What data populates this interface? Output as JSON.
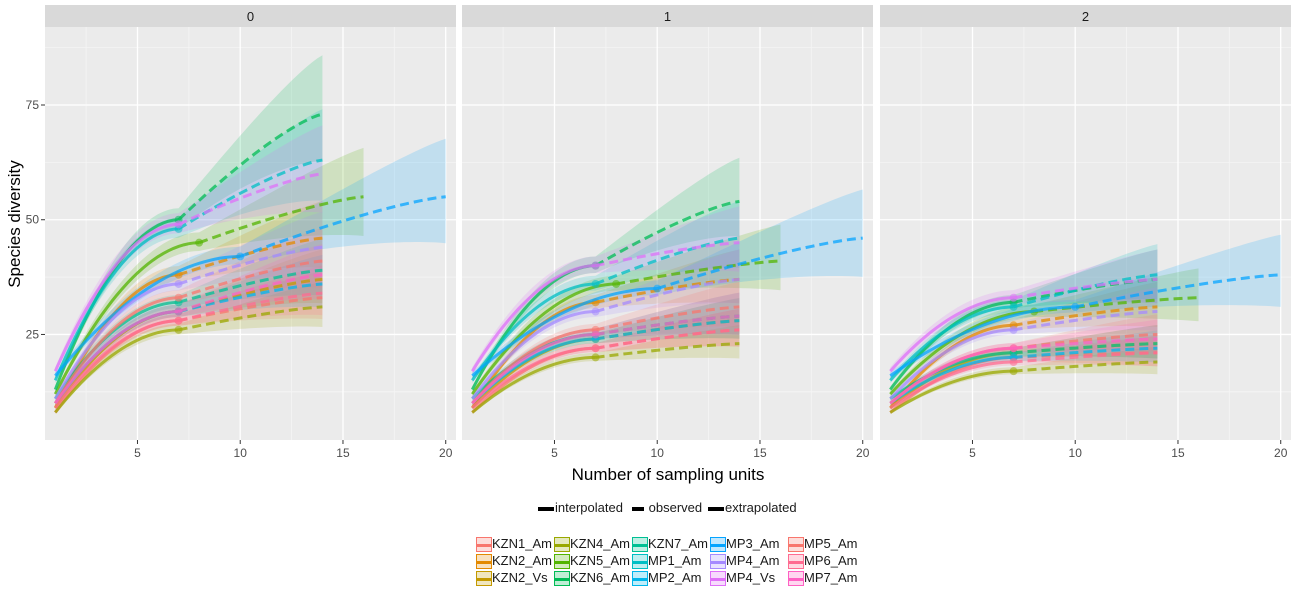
{
  "panels": [
    "0",
    "1",
    "2"
  ],
  "xlabel": "Number of sampling units",
  "ylabel": "Species diversity",
  "x_ticks": [
    5,
    10,
    15,
    20
  ],
  "y_ticks": [
    25,
    50,
    75
  ],
  "xlim": [
    0.5,
    20.5
  ],
  "ylim": [
    2,
    92
  ],
  "method_legend": [
    "interpolated",
    "observed",
    "extrapolated"
  ],
  "colors": {
    "KZN1_Am": "#F8766D",
    "KZN2_Am": "#E38900",
    "KZN2_Vs": "#C49A00",
    "KZN4_Am": "#99A800",
    "KZN5_Am": "#53B400",
    "KZN6_Am": "#00BC56",
    "KZN7_Am": "#00C094",
    "MP1_Am": "#00BFC4",
    "MP2_Am": "#00B6EB",
    "MP3_Am": "#06A4FF",
    "MP4_Am": "#A58AFF",
    "MP4_Vs": "#DF70F8",
    "MP5_Am": "#F8766D",
    "MP6_Am": "#FF6C91",
    "MP7_Am": "#FF61C3"
  },
  "legend_items": [
    "KZN1_Am",
    "KZN2_Am",
    "KZN2_Vs",
    "KZN4_Am",
    "KZN5_Am",
    "KZN6_Am",
    "KZN7_Am",
    "MP1_Am",
    "MP2_Am",
    "MP3_Am",
    "MP4_Am",
    "MP4_Vs",
    "MP5_Am",
    "MP6_Am",
    "MP7_Am"
  ],
  "chart_data": {
    "type": "line",
    "facets": [
      "0",
      "1",
      "2"
    ],
    "xlabel": "Number of sampling units",
    "ylabel": "Species diversity",
    "xlim": [
      0.5,
      20.5
    ],
    "ylim": [
      2,
      92
    ],
    "series": [
      {
        "name": "KZN1_Am",
        "n_obs": 7,
        "x_end": 14,
        "start": [
          8,
          8,
          8
        ],
        "obs": [
          28,
          22,
          20
        ],
        "end": [
          33,
          26,
          21
        ]
      },
      {
        "name": "KZN2_Am",
        "n_obs": 7,
        "x_end": 14,
        "start": [
          9,
          9,
          9
        ],
        "obs": [
          38,
          32,
          27
        ],
        "end": [
          46,
          37,
          31
        ]
      },
      {
        "name": "KZN2_Vs",
        "n_obs": 7,
        "x_end": 14,
        "start": [
          9,
          9,
          9
        ],
        "obs": [
          30,
          24,
          21
        ],
        "end": [
          37,
          28,
          23
        ]
      },
      {
        "name": "KZN4_Am",
        "n_obs": 7,
        "x_end": 14,
        "start": [
          8,
          8,
          8
        ],
        "obs": [
          26,
          20,
          17
        ],
        "end": [
          31,
          23,
          19
        ]
      },
      {
        "name": "KZN5_Am",
        "n_obs": 8,
        "x_end": 16,
        "start": [
          12,
          12,
          12
        ],
        "obs": [
          45,
          36,
          30
        ],
        "end": [
          55,
          41,
          33
        ]
      },
      {
        "name": "KZN6_Am",
        "n_obs": 7,
        "x_end": 14,
        "start": [
          13,
          13,
          13
        ],
        "obs": [
          50,
          40,
          32
        ],
        "end": [
          73,
          54,
          37
        ]
      },
      {
        "name": "KZN7_Am",
        "n_obs": 7,
        "x_end": 14,
        "start": [
          11,
          11,
          11
        ],
        "obs": [
          32,
          25,
          21
        ],
        "end": [
          39,
          29,
          23
        ]
      },
      {
        "name": "MP1_Am",
        "n_obs": 7,
        "x_end": 14,
        "start": [
          15,
          15,
          15
        ],
        "obs": [
          48,
          36,
          31
        ],
        "end": [
          63,
          46,
          38
        ]
      },
      {
        "name": "MP2_Am",
        "n_obs": 7,
        "x_end": 14,
        "start": [
          10,
          10,
          10
        ],
        "obs": [
          30,
          24,
          20
        ],
        "end": [
          36,
          28,
          22
        ]
      },
      {
        "name": "MP3_Am",
        "n_obs": 10,
        "x_end": 20,
        "start": [
          16,
          16,
          16
        ],
        "obs": [
          42,
          35,
          31
        ],
        "end": [
          55,
          46,
          38
        ]
      },
      {
        "name": "MP4_Am",
        "n_obs": 7,
        "x_end": 14,
        "start": [
          11,
          11,
          11
        ],
        "obs": [
          36,
          30,
          26
        ],
        "end": [
          44,
          37,
          30
        ]
      },
      {
        "name": "MP4_Vs",
        "n_obs": 7,
        "x_end": 14,
        "start": [
          17,
          17,
          17
        ],
        "obs": [
          49,
          40,
          33
        ],
        "end": [
          60,
          45,
          37
        ]
      },
      {
        "name": "MP5_Am",
        "n_obs": 7,
        "x_end": 14,
        "start": [
          10,
          10,
          10
        ],
        "obs": [
          33,
          26,
          22
        ],
        "end": [
          41,
          31,
          25
        ]
      },
      {
        "name": "MP6_Am",
        "n_obs": 7,
        "x_end": 14,
        "start": [
          9,
          9,
          9
        ],
        "obs": [
          28,
          22,
          19
        ],
        "end": [
          34,
          26,
          21
        ]
      },
      {
        "name": "MP7_Am",
        "n_obs": 7,
        "x_end": 14,
        "start": [
          10,
          10,
          10
        ],
        "obs": [
          30,
          25,
          22
        ],
        "end": [
          38,
          29,
          24
        ]
      }
    ],
    "grid": true,
    "legend_position": "bottom"
  }
}
